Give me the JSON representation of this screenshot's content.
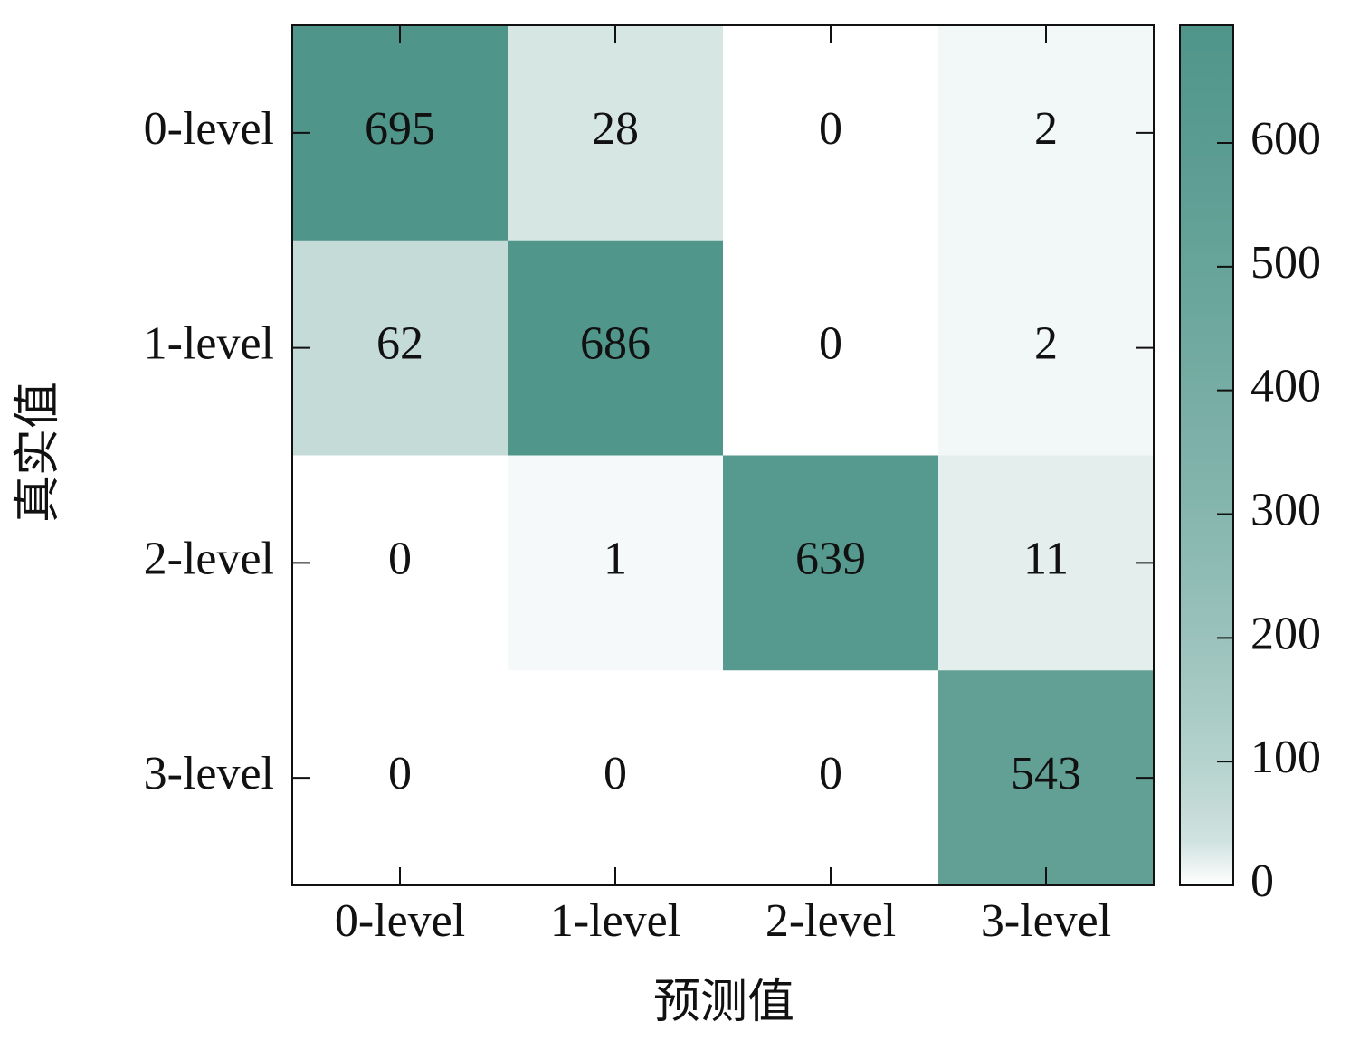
{
  "chart_data": {
    "type": "heatmap",
    "x_label": "预测值",
    "y_label": "真实值",
    "x_categories": [
      "0-level",
      "1-level",
      "2-level",
      "3-level"
    ],
    "y_categories": [
      "0-level",
      "1-level",
      "2-level",
      "3-level"
    ],
    "values": [
      [
        695,
        28,
        0,
        2
      ],
      [
        62,
        686,
        0,
        2
      ],
      [
        0,
        1,
        639,
        11
      ],
      [
        0,
        0,
        0,
        543
      ]
    ],
    "colorbar": {
      "lim": [
        0,
        695
      ],
      "ticks": [
        0,
        100,
        200,
        300,
        400,
        500,
        600
      ]
    },
    "color_low": "#ffffff",
    "color_high": "#4f958a"
  }
}
